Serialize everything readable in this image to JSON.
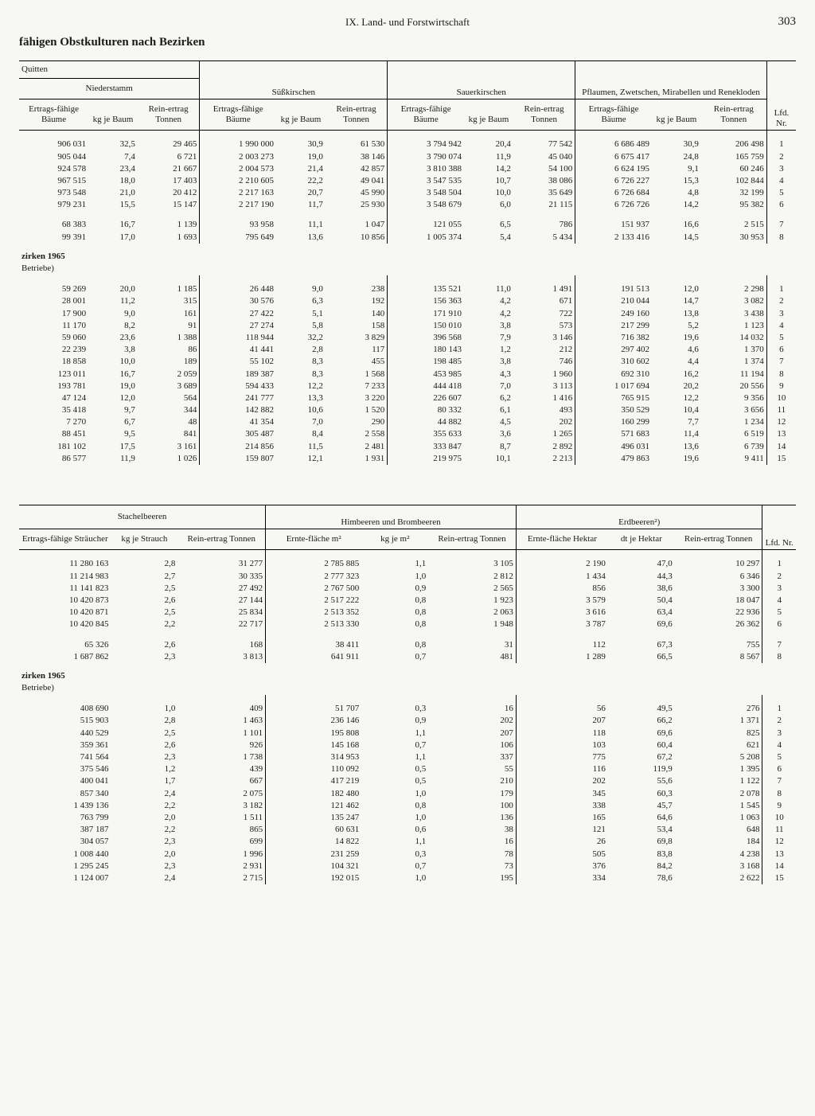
{
  "page": {
    "chapter": "IX. Land- und Forstwirtschaft",
    "number": "303",
    "subtitle": "fähigen Obstkulturen nach Bezirken"
  },
  "upper": {
    "groups": {
      "quitten": "Quitten",
      "niederstamm": "Niederstamm",
      "sueskirschen": "Süßkirschen",
      "sauerkirschen": "Sauerkirschen",
      "pflaumen": "Pflaumen, Zwetschen, Mirabellen und Renekloden",
      "lfd": "Lfd. Nr."
    },
    "cols": {
      "ertrags": "Ertrags-fähige Bäume",
      "kgje": "kg je Baum",
      "rein": "Rein-ertrag Tonnen"
    },
    "block1": [
      [
        "906 031",
        "32,5",
        "29 465",
        "1 990 000",
        "30,9",
        "61 530",
        "3 794 942",
        "20,4",
        "77 542",
        "6 686 489",
        "30,9",
        "206 498",
        "1"
      ],
      [
        "905 044",
        "7,4",
        "6 721",
        "2 003 273",
        "19,0",
        "38 146",
        "3 790 074",
        "11,9",
        "45 040",
        "6 675 417",
        "24,8",
        "165 759",
        "2"
      ],
      [
        "924 578",
        "23,4",
        "21 667",
        "2 004 573",
        "21,4",
        "42 857",
        "3 810 388",
        "14,2",
        "54 100",
        "6 624 195",
        "9,1",
        "60 246",
        "3"
      ],
      [
        "967 515",
        "18,0",
        "17 403",
        "2 210 605",
        "22,2",
        "49 041",
        "3 547 535",
        "10,7",
        "38 086",
        "6 726 227",
        "15,3",
        "102 844",
        "4"
      ],
      [
        "973 548",
        "21,0",
        "20 412",
        "2 217 163",
        "20,7",
        "45 990",
        "3 548 504",
        "10,0",
        "35 649",
        "6 726 684",
        "4,8",
        "32 199",
        "5"
      ],
      [
        "979 231",
        "15,5",
        "15 147",
        "2 217 190",
        "11,7",
        "25 930",
        "3 548 679",
        "6,0",
        "21 115",
        "6 726 726",
        "14,2",
        "95 382",
        "6"
      ]
    ],
    "block2": [
      [
        "68 383",
        "16,7",
        "1 139",
        "93 958",
        "11,1",
        "1 047",
        "121 055",
        "6,5",
        "786",
        "151 937",
        "16,6",
        "2 515",
        "7"
      ],
      [
        "99 391",
        "17,0",
        "1 693",
        "795 649",
        "13,6",
        "10 856",
        "1 005 374",
        "5,4",
        "5 434",
        "2 133 416",
        "14,5",
        "30 953",
        "8"
      ]
    ],
    "section_label_a": "zirken 1965",
    "section_label_b": "Betriebe)",
    "block3": [
      [
        "59 269",
        "20,0",
        "1 185",
        "26 448",
        "9,0",
        "238",
        "135 521",
        "11,0",
        "1 491",
        "191 513",
        "12,0",
        "2 298",
        "1"
      ],
      [
        "28 001",
        "11,2",
        "315",
        "30 576",
        "6,3",
        "192",
        "156 363",
        "4,2",
        "671",
        "210 044",
        "14,7",
        "3 082",
        "2"
      ],
      [
        "17 900",
        "9,0",
        "161",
        "27 422",
        "5,1",
        "140",
        "171 910",
        "4,2",
        "722",
        "249 160",
        "13,8",
        "3 438",
        "3"
      ],
      [
        "11 170",
        "8,2",
        "91",
        "27 274",
        "5,8",
        "158",
        "150 010",
        "3,8",
        "573",
        "217 299",
        "5,2",
        "1 123",
        "4"
      ],
      [
        "59 060",
        "23,6",
        "1 388",
        "118 944",
        "32,2",
        "3 829",
        "396 568",
        "7,9",
        "3 146",
        "716 382",
        "19,6",
        "14 032",
        "5"
      ],
      [
        "22 239",
        "3,8",
        "86",
        "41 441",
        "2,8",
        "117",
        "180 143",
        "1,2",
        "212",
        "297 402",
        "4,6",
        "1 370",
        "6"
      ],
      [
        "18 858",
        "10,0",
        "189",
        "55 102",
        "8,3",
        "455",
        "198 485",
        "3,8",
        "746",
        "310 602",
        "4,4",
        "1 374",
        "7"
      ],
      [
        "123 011",
        "16,7",
        "2 059",
        "189 387",
        "8,3",
        "1 568",
        "453 985",
        "4,3",
        "1 960",
        "692 310",
        "16,2",
        "11 194",
        "8"
      ],
      [
        "193 781",
        "19,0",
        "3 689",
        "594 433",
        "12,2",
        "7 233",
        "444 418",
        "7,0",
        "3 113",
        "1 017 694",
        "20,2",
        "20 556",
        "9"
      ],
      [
        "47 124",
        "12,0",
        "564",
        "241 777",
        "13,3",
        "3 220",
        "226 607",
        "6,2",
        "1 416",
        "765 915",
        "12,2",
        "9 356",
        "10"
      ],
      [
        "35 418",
        "9,7",
        "344",
        "142 882",
        "10,6",
        "1 520",
        "80 332",
        "6,1",
        "493",
        "350 529",
        "10,4",
        "3 656",
        "11"
      ],
      [
        "7 270",
        "6,7",
        "48",
        "41 354",
        "7,0",
        "290",
        "44 882",
        "4,5",
        "202",
        "160 299",
        "7,7",
        "1 234",
        "12"
      ],
      [
        "88 451",
        "9,5",
        "841",
        "305 487",
        "8,4",
        "2 558",
        "355 633",
        "3,6",
        "1 265",
        "571 683",
        "11,4",
        "6 519",
        "13"
      ],
      [
        "181 102",
        "17,5",
        "3 161",
        "214 856",
        "11,5",
        "2 481",
        "333 847",
        "8,7",
        "2 892",
        "496 031",
        "13,6",
        "6 739",
        "14"
      ],
      [
        "86 577",
        "11,9",
        "1 026",
        "159 807",
        "12,1",
        "1 931",
        "219 975",
        "10,1",
        "2 213",
        "479 863",
        "19,6",
        "9 411",
        "15"
      ]
    ]
  },
  "lower": {
    "groups": {
      "stachel": "Stachelbeeren",
      "himbeer": "Himbeeren und Brombeeren",
      "erdbeer": "Erdbeeren²)",
      "lfd": "Lfd. Nr."
    },
    "cols": {
      "ertrags_str": "Ertrags-fähige Sträucher",
      "kg_strauch": "kg je Strauch",
      "rein": "Rein-ertrag Tonnen",
      "ernte_m2": "Ernte-fläche m²",
      "kg_m2": "kg je m²",
      "ernte_ha": "Ernte-fläche Hektar",
      "dt_ha": "dt je Hektar"
    },
    "block1": [
      [
        "11 280 163",
        "2,8",
        "31 277",
        "2 785 885",
        "1,1",
        "3 105",
        "2 190",
        "47,0",
        "10 297",
        "1"
      ],
      [
        "11 214 983",
        "2,7",
        "30 335",
        "2 777 323",
        "1,0",
        "2 812",
        "1 434",
        "44,3",
        "6 346",
        "2"
      ],
      [
        "11 141 823",
        "2,5",
        "27 492",
        "2 767 500",
        "0,9",
        "2 565",
        "856",
        "38,6",
        "3 300",
        "3"
      ],
      [
        "10 420 873",
        "2,6",
        "27 144",
        "2 517 222",
        "0,8",
        "1 923",
        "3 579",
        "50,4",
        "18 047",
        "4"
      ],
      [
        "10 420 871",
        "2,5",
        "25 834",
        "2 513 352",
        "0,8",
        "2 063",
        "3 616",
        "63,4",
        "22 936",
        "5"
      ],
      [
        "10 420 845",
        "2,2",
        "22 717",
        "2 513 330",
        "0,8",
        "1 948",
        "3 787",
        "69,6",
        "26 362",
        "6"
      ]
    ],
    "block2": [
      [
        "65 326",
        "2,6",
        "168",
        "38 411",
        "0,8",
        "31",
        "112",
        "67,3",
        "755",
        "7"
      ],
      [
        "1 687 862",
        "2,3",
        "3 813",
        "641 911",
        "0,7",
        "481",
        "1 289",
        "66,5",
        "8 567",
        "8"
      ]
    ],
    "section_label_a": "zirken 1965",
    "section_label_b": "Betriebe)",
    "block3": [
      [
        "408 690",
        "1,0",
        "409",
        "51 707",
        "0,3",
        "16",
        "56",
        "49,5",
        "276",
        "1"
      ],
      [
        "515 903",
        "2,8",
        "1 463",
        "236 146",
        "0,9",
        "202",
        "207",
        "66,2",
        "1 371",
        "2"
      ],
      [
        "440 529",
        "2,5",
        "1 101",
        "195 808",
        "1,1",
        "207",
        "118",
        "69,6",
        "825",
        "3"
      ],
      [
        "359 361",
        "2,6",
        "926",
        "145 168",
        "0,7",
        "106",
        "103",
        "60,4",
        "621",
        "4"
      ],
      [
        "741 564",
        "2,3",
        "1 738",
        "314 953",
        "1,1",
        "337",
        "775",
        "67,2",
        "5 208",
        "5"
      ],
      [
        "375 546",
        "1,2",
        "439",
        "110 092",
        "0,5",
        "55",
        "116",
        "119,9",
        "1 395",
        "6"
      ],
      [
        "400 041",
        "1,7",
        "667",
        "417 219",
        "0,5",
        "210",
        "202",
        "55,6",
        "1 122",
        "7"
      ],
      [
        "857 340",
        "2,4",
        "2 075",
        "182 480",
        "1,0",
        "179",
        "345",
        "60,3",
        "2 078",
        "8"
      ],
      [
        "1 439 136",
        "2,2",
        "3 182",
        "121 462",
        "0,8",
        "100",
        "338",
        "45,7",
        "1 545",
        "9"
      ],
      [
        "763 799",
        "2,0",
        "1 511",
        "135 247",
        "1,0",
        "136",
        "165",
        "64,6",
        "1 063",
        "10"
      ],
      [
        "387 187",
        "2,2",
        "865",
        "60 631",
        "0,6",
        "38",
        "121",
        "53,4",
        "648",
        "11"
      ],
      [
        "304 057",
        "2,3",
        "699",
        "14 822",
        "1,1",
        "16",
        "26",
        "69,8",
        "184",
        "12"
      ],
      [
        "1 008 440",
        "2,0",
        "1 996",
        "231 259",
        "0,3",
        "78",
        "505",
        "83,8",
        "4 238",
        "13"
      ],
      [
        "1 295 245",
        "2,3",
        "2 931",
        "104 321",
        "0,7",
        "73",
        "376",
        "84,2",
        "3 168",
        "14"
      ],
      [
        "1 124 007",
        "2,4",
        "2 715",
        "192 015",
        "1,0",
        "195",
        "334",
        "78,6",
        "2 622",
        "15"
      ]
    ]
  }
}
